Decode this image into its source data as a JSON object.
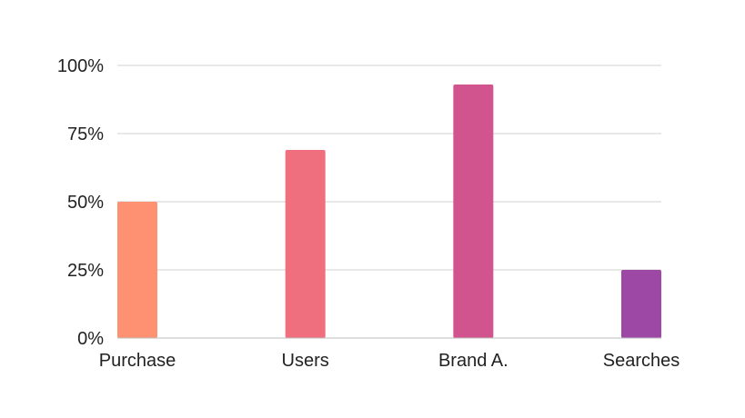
{
  "chart_data": {
    "type": "bar",
    "title": "",
    "xlabel": "",
    "ylabel": "",
    "categories": [
      "Purchase",
      "Users",
      "Brand A.",
      "Searches"
    ],
    "values": [
      50,
      69,
      93,
      25
    ],
    "colors": [
      "#FF9173",
      "#F06F7F",
      "#D2548E",
      "#9C48A4"
    ],
    "ylim": [
      0,
      100
    ],
    "yticks": [
      0,
      25,
      50,
      75,
      100
    ],
    "ytick_labels": [
      "0%",
      "25%",
      "50%",
      "75%",
      "100%"
    ],
    "grid": true,
    "legend": "none"
  }
}
